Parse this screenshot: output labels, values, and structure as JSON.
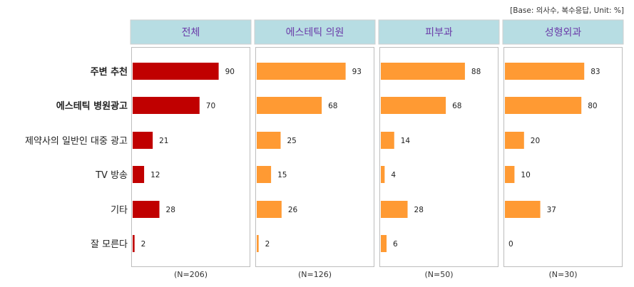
{
  "note": "[Base: 의사수, 복수응답, Unit: %]",
  "colors": {
    "total": "#c00000",
    "segment": "#ff9a33",
    "header_bg": "#b7dde3",
    "header_text": "#6a3aa8"
  },
  "chart_data": {
    "type": "bar",
    "orientation": "horizontal",
    "unit": "%",
    "categories": [
      "주변 추천",
      "에스테틱 병원광고",
      "제약사의 일반인 대중 광고",
      "TV 방송",
      "기타",
      "잘 모른다"
    ],
    "bold_categories": [
      "주변 추천",
      "에스테틱 병원광고"
    ],
    "xlim": [
      0,
      100
    ],
    "panels": [
      {
        "title": "전체",
        "base": "(N=206)",
        "values": [
          90,
          70,
          21,
          12,
          28,
          2
        ]
      },
      {
        "title": "에스테틱 의원",
        "base": "(N=126)",
        "values": [
          93,
          68,
          25,
          15,
          26,
          2
        ]
      },
      {
        "title": "피부과",
        "base": "(N=50)",
        "values": [
          88,
          68,
          14,
          4,
          28,
          6
        ]
      },
      {
        "title": "성형외과",
        "base": "(N=30)",
        "values": [
          83,
          80,
          20,
          10,
          37,
          0
        ]
      }
    ]
  }
}
